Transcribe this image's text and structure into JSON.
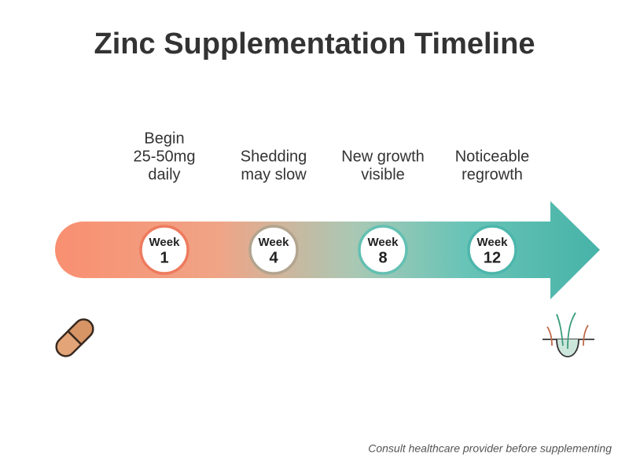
{
  "title": "Zinc Supplementation Timeline",
  "milestones": [
    {
      "week_label": "Week",
      "week": "1",
      "description": [
        "Begin",
        "25-50mg",
        "daily"
      ],
      "color": "#ee7b5e"
    },
    {
      "week_label": "Week",
      "week": "4",
      "description": [
        "Shedding",
        "may slow"
      ],
      "color": "#b3a48f"
    },
    {
      "week_label": "Week",
      "week": "8",
      "description": [
        "New growth",
        "visible"
      ],
      "color": "#63c0b2"
    },
    {
      "week_label": "Week",
      "week": "12",
      "description": [
        "Noticeable",
        "regrowth"
      ],
      "color": "#4db6ac"
    }
  ],
  "footer": "Consult healthcare provider before supplementing"
}
